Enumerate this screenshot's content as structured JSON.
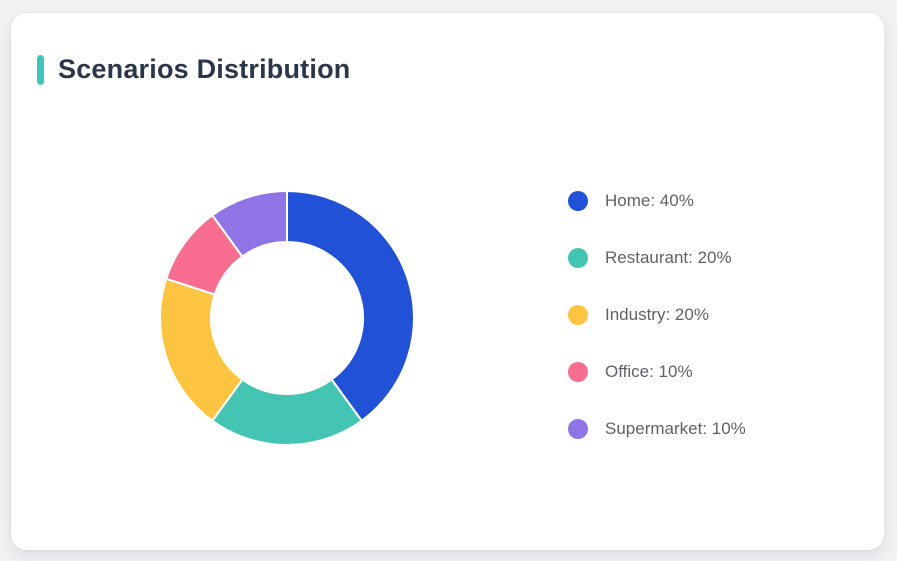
{
  "page": {
    "background_color": "#f1f2f4"
  },
  "card": {
    "title": "Scenarios Distribution",
    "accent_color": "#3ec6bd"
  },
  "chart_data": {
    "type": "pie",
    "subtype": "donut",
    "title": "Scenarios Distribution",
    "start_angle_deg": 0,
    "direction": "clockwise",
    "inner_radius_ratio": 0.6,
    "unit": "%",
    "categories": [
      "Home",
      "Restaurant",
      "Industry",
      "Office",
      "Supermarket"
    ],
    "values": [
      40,
      20,
      20,
      10,
      10
    ],
    "colors": [
      "#2151d7",
      "#44c5b3",
      "#fdc441",
      "#f96d90",
      "#9074e6"
    ],
    "segment_gap_color": "#ffffff",
    "legend_position": "right",
    "legend_items": [
      {
        "label": "Home: 40%",
        "color": "#2151d7"
      },
      {
        "label": "Restaurant: 20%",
        "color": "#44c5b3"
      },
      {
        "label": "Industry: 20%",
        "color": "#fdc441"
      },
      {
        "label": "Office: 10%",
        "color": "#f96d90"
      },
      {
        "label": "Supermarket: 10%",
        "color": "#9074e6"
      }
    ]
  }
}
